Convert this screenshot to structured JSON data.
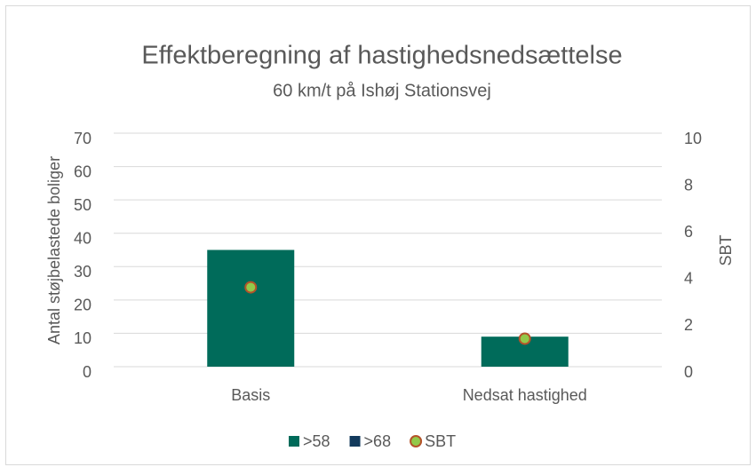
{
  "chart_data": {
    "type": "bar",
    "title": "Effektberegning af hastighedsnedsættelse",
    "subtitle": "60 km/t på Ishøj Stationsvej",
    "ylabel": "Antal støjbelastede boliger",
    "y2label": "SBT",
    "categories": [
      "Basis",
      "Nedsat hastighed"
    ],
    "series": [
      {
        "name": ">58",
        "color": "#006b5a",
        "values": [
          35,
          9
        ]
      },
      {
        "name": ">68",
        "color": "#123a5c",
        "values": [
          0,
          0
        ]
      },
      {
        "name": "SBT",
        "color": "#92c94a",
        "edge": "#b4532a",
        "type": "scatter",
        "axis": "y2",
        "values": [
          3.4,
          1.2
        ]
      }
    ],
    "ylim": [
      0,
      70
    ],
    "yticks": [
      0,
      10,
      20,
      30,
      40,
      50,
      60,
      70
    ],
    "y2lim": [
      0,
      10
    ],
    "y2ticks": [
      0,
      2,
      4,
      6,
      8,
      10
    ],
    "grid": true,
    "legend": "bottom"
  }
}
